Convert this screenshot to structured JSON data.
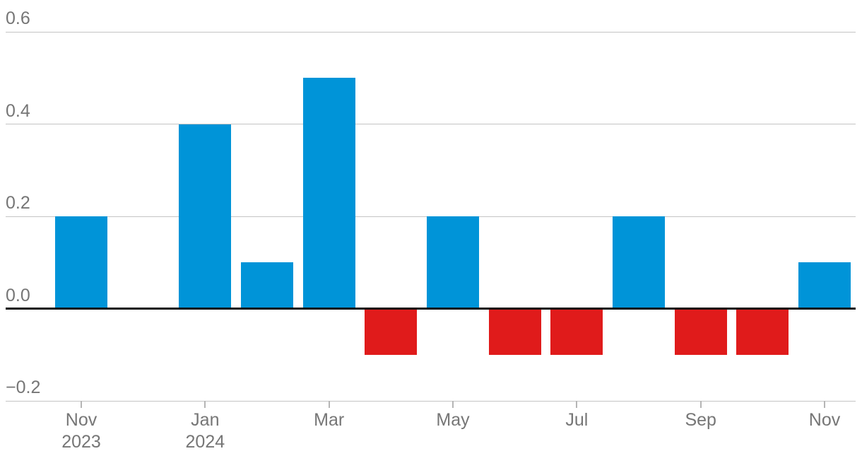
{
  "chart_data": {
    "type": "bar",
    "title": "",
    "xlabel": "",
    "ylabel": "",
    "categories": [
      "Nov 2023",
      "Dec 2023",
      "Jan 2024",
      "Feb 2024",
      "Mar 2024",
      "Apr 2024",
      "May 2024",
      "Jun 2024",
      "Jul 2024",
      "Aug 2024",
      "Sep 2024",
      "Oct 2024",
      "Nov 2024"
    ],
    "values": [
      0.2,
      0.0,
      0.4,
      0.1,
      0.5,
      -0.1,
      0.2,
      -0.1,
      -0.1,
      0.2,
      -0.1,
      -0.1,
      0.1
    ],
    "ylim": [
      -0.28,
      0.66
    ],
    "grid": true,
    "legend": false,
    "y_ticks": [
      {
        "value": 0.6,
        "label": "0.6"
      },
      {
        "value": 0.4,
        "label": "0.4"
      },
      {
        "value": 0.2,
        "label": "0.2"
      },
      {
        "value": 0.0,
        "label": "0.0"
      },
      {
        "value": -0.2,
        "label": "−0.2"
      }
    ],
    "x_ticks": [
      {
        "index": 0,
        "line1": "Nov",
        "line2": "2023"
      },
      {
        "index": 2,
        "line1": "Jan",
        "line2": "2024"
      },
      {
        "index": 4,
        "line1": "Mar",
        "line2": ""
      },
      {
        "index": 6,
        "line1": "May",
        "line2": ""
      },
      {
        "index": 8,
        "line1": "Jul",
        "line2": ""
      },
      {
        "index": 10,
        "line1": "Sep",
        "line2": ""
      },
      {
        "index": 12,
        "line1": "Nov",
        "line2": ""
      }
    ],
    "colors": {
      "positive_bar": "#0094d8",
      "negative_bar": "#e01b1b",
      "gridline": "#c4c4c4",
      "tick": "#b5b5b5",
      "zero_line": "#121212",
      "axis_text": "#767676"
    }
  }
}
